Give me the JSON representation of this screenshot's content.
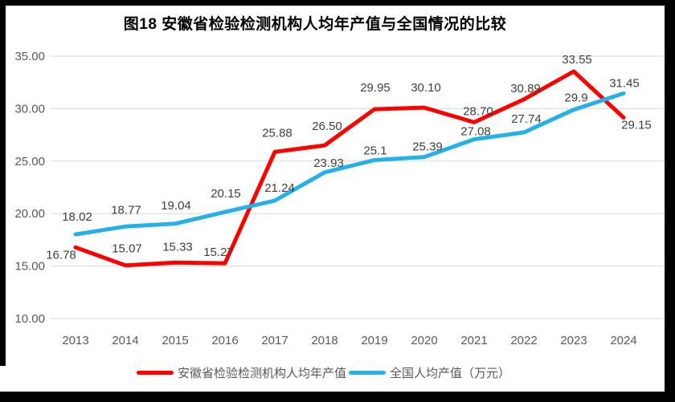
{
  "title": "图18 安徽省检验检测机构人均年产值与全国情况的比较",
  "chart_data": {
    "type": "line",
    "categories": [
      "2013",
      "2014",
      "2015",
      "2016",
      "2017",
      "2018",
      "2019",
      "2020",
      "2021",
      "2022",
      "2023",
      "2024"
    ],
    "series": [
      {
        "name": "安徽省检验检测机构人均年产值",
        "color": "#ff0000",
        "values": [
          16.78,
          15.07,
          15.33,
          15.27,
          25.88,
          26.5,
          29.95,
          30.1,
          28.7,
          30.89,
          33.55,
          29.15
        ],
        "labels": [
          "16.78",
          "15.07",
          "15.33",
          "15.27",
          "25.88",
          "26.50",
          "29.95",
          "30.10",
          "28.70",
          "30.89",
          "33.55",
          "29.15"
        ],
        "label_offsets": [
          [
            -18,
            9
          ],
          [
            2,
            -21
          ],
          [
            3,
            -20
          ],
          [
            -8,
            -14
          ],
          [
            3,
            -24
          ],
          [
            3,
            -24
          ],
          [
            1,
            -27
          ],
          [
            2,
            -25
          ],
          [
            5,
            -14
          ],
          [
            2,
            -14
          ],
          [
            4,
            -15
          ],
          [
            16,
            9
          ]
        ]
      },
      {
        "name": "全国人均产值（万元）",
        "color": "#25b0e8",
        "values": [
          18.02,
          18.77,
          19.04,
          20.15,
          21.24,
          23.93,
          25.1,
          25.39,
          27.08,
          27.74,
          29.9,
          31.45
        ],
        "labels": [
          "18.02",
          "18.77",
          "19.04",
          "20.15",
          "21.24",
          "23.93",
          "25.1",
          "25.39",
          "27.08",
          "27.74",
          "29.9",
          "31.45"
        ],
        "label_offsets": [
          [
            2,
            -22
          ],
          [
            1,
            -21
          ],
          [
            1,
            -23
          ],
          [
            1,
            -23
          ],
          [
            6,
            -16
          ],
          [
            5,
            -12
          ],
          [
            1,
            -12
          ],
          [
            4,
            -13
          ],
          [
            2,
            -10
          ],
          [
            3,
            -17
          ],
          [
            3,
            -15
          ],
          [
            1,
            -13
          ]
        ]
      }
    ],
    "ylim": [
      10,
      35
    ],
    "yticks": {
      "values": [
        10,
        15,
        20,
        25,
        30,
        35
      ],
      "labels": [
        "10.00",
        "15.00",
        "20.00",
        "25.00",
        "30.00",
        "35.00"
      ]
    },
    "grid": true,
    "legend_position": "bottom",
    "colors": {
      "grid": "#d9d9d9",
      "axis_text": "#595959",
      "data_label": "#404040",
      "frame": "#000000"
    }
  }
}
